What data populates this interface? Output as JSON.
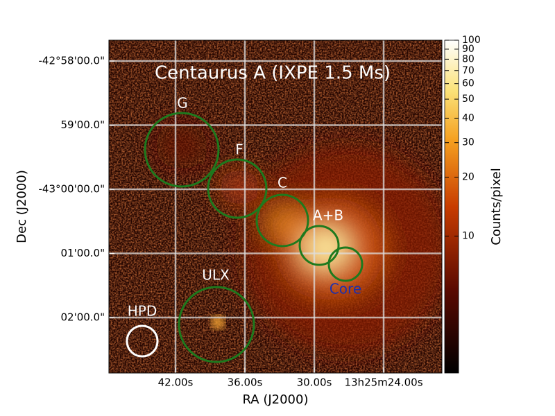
{
  "chart_data": {
    "type": "image",
    "title": "Centaurus A (IXPE 1.5 Ms)",
    "x_label": "RA (J2000)",
    "y_label": "Dec (J2000)",
    "colorbar_label": "Counts/pixel",
    "xlim": [
      47.76,
      18.96
    ],
    "xticks": [
      {
        "value": 42,
        "label": "42.00s"
      },
      {
        "value": 36,
        "label": "36.00s"
      },
      {
        "value": 30,
        "label": "30.00s"
      },
      {
        "value": 24,
        "label": "13h25m24.00s"
      }
    ],
    "ylim": [
      -43.047748,
      -42.961261
    ],
    "yticks": [
      {
        "value": -42.966667,
        "label": "-42°58'00.0\""
      },
      {
        "value": -42.983333,
        "label": "59'00.0\""
      },
      {
        "value": -43.0,
        "label": "-43°00'00.0\""
      },
      {
        "value": -43.016667,
        "label": "01'00.0\""
      },
      {
        "value": -43.033333,
        "label": "02'00.0\""
      }
    ],
    "clim": [
      2,
      100
    ],
    "clog": true,
    "cticks": [
      10,
      20,
      30,
      40,
      50,
      60,
      70,
      80,
      90,
      100
    ],
    "grid": true,
    "regions": [
      {
        "label": "G",
        "color": "#1e7a1e"
      },
      {
        "label": "F",
        "color": "#1e7a1e"
      },
      {
        "label": "C",
        "color": "#1e7a1e"
      },
      {
        "label": "A+B",
        "color": "#1e7a1e"
      },
      {
        "label": "Core",
        "color": "#1e7a1e",
        "label_color": "#1a2fb0"
      },
      {
        "label": "ULX",
        "color": "#1e7a1e"
      },
      {
        "label": "HPD",
        "color": "#ffffff"
      }
    ]
  }
}
